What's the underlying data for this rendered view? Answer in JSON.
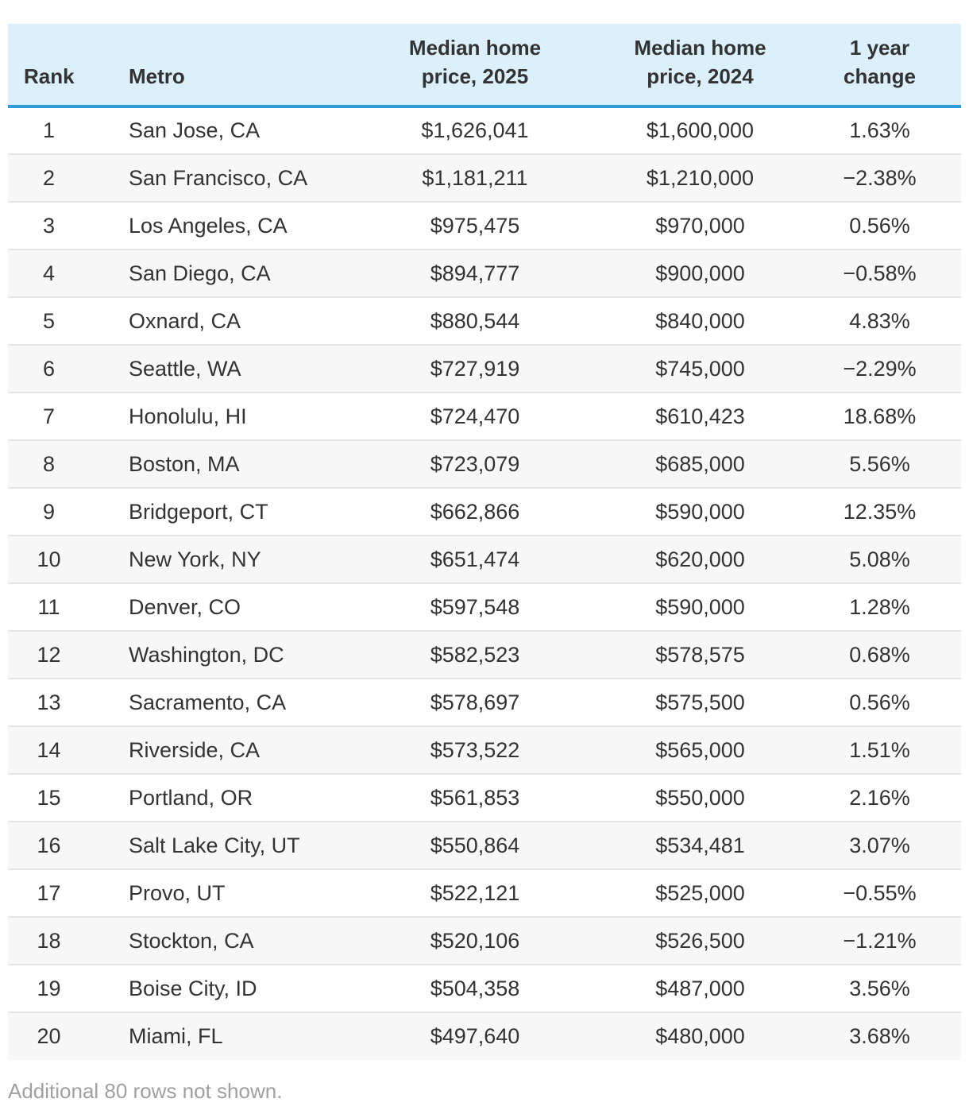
{
  "table": {
    "headers": {
      "rank": "Rank",
      "metro": "Metro",
      "price_2025_line1": "Median home",
      "price_2025_line2": "price, 2025",
      "price_2024_line1": "Median home",
      "price_2024_line2": "price, 2024",
      "change_line1": "1 year",
      "change_line2": "change"
    },
    "rows": [
      {
        "rank": "1",
        "metro": "San Jose, CA",
        "price_2025": "$1,626,041",
        "price_2024": "$1,600,000",
        "change": "1.63%"
      },
      {
        "rank": "2",
        "metro": "San Francisco, CA",
        "price_2025": "$1,181,211",
        "price_2024": "$1,210,000",
        "change": "−2.38%"
      },
      {
        "rank": "3",
        "metro": "Los Angeles, CA",
        "price_2025": "$975,475",
        "price_2024": "$970,000",
        "change": "0.56%"
      },
      {
        "rank": "4",
        "metro": "San Diego, CA",
        "price_2025": "$894,777",
        "price_2024": "$900,000",
        "change": "−0.58%"
      },
      {
        "rank": "5",
        "metro": "Oxnard, CA",
        "price_2025": "$880,544",
        "price_2024": "$840,000",
        "change": "4.83%"
      },
      {
        "rank": "6",
        "metro": "Seattle, WA",
        "price_2025": "$727,919",
        "price_2024": "$745,000",
        "change": "−2.29%"
      },
      {
        "rank": "7",
        "metro": "Honolulu, HI",
        "price_2025": "$724,470",
        "price_2024": "$610,423",
        "change": "18.68%"
      },
      {
        "rank": "8",
        "metro": "Boston, MA",
        "price_2025": "$723,079",
        "price_2024": "$685,000",
        "change": "5.56%"
      },
      {
        "rank": "9",
        "metro": "Bridgeport, CT",
        "price_2025": "$662,866",
        "price_2024": "$590,000",
        "change": "12.35%"
      },
      {
        "rank": "10",
        "metro": "New York, NY",
        "price_2025": "$651,474",
        "price_2024": "$620,000",
        "change": "5.08%"
      },
      {
        "rank": "11",
        "metro": "Denver, CO",
        "price_2025": "$597,548",
        "price_2024": "$590,000",
        "change": "1.28%"
      },
      {
        "rank": "12",
        "metro": "Washington, DC",
        "price_2025": "$582,523",
        "price_2024": "$578,575",
        "change": "0.68%"
      },
      {
        "rank": "13",
        "metro": "Sacramento, CA",
        "price_2025": "$578,697",
        "price_2024": "$575,500",
        "change": "0.56%"
      },
      {
        "rank": "14",
        "metro": "Riverside, CA",
        "price_2025": "$573,522",
        "price_2024": "$565,000",
        "change": "1.51%"
      },
      {
        "rank": "15",
        "metro": "Portland, OR",
        "price_2025": "$561,853",
        "price_2024": "$550,000",
        "change": "2.16%"
      },
      {
        "rank": "16",
        "metro": "Salt Lake City, UT",
        "price_2025": "$550,864",
        "price_2024": "$534,481",
        "change": "3.07%"
      },
      {
        "rank": "17",
        "metro": "Provo, UT",
        "price_2025": "$522,121",
        "price_2024": "$525,000",
        "change": "−0.55%"
      },
      {
        "rank": "18",
        "metro": "Stockton, CA",
        "price_2025": "$520,106",
        "price_2024": "$526,500",
        "change": "−1.21%"
      },
      {
        "rank": "19",
        "metro": "Boise City, ID",
        "price_2025": "$504,358",
        "price_2024": "$487,000",
        "change": "3.56%"
      },
      {
        "rank": "20",
        "metro": "Miami, FL",
        "price_2025": "$497,640",
        "price_2024": "$480,000",
        "change": "3.68%"
      }
    ]
  },
  "footer": {
    "note": "Additional 80 rows not shown."
  },
  "colors": {
    "header_bg": "#dcf0fc",
    "header_rule": "#2b9ad8",
    "stripe": "#f7f7f7",
    "text": "#333333",
    "note": "#a0a0a0"
  }
}
